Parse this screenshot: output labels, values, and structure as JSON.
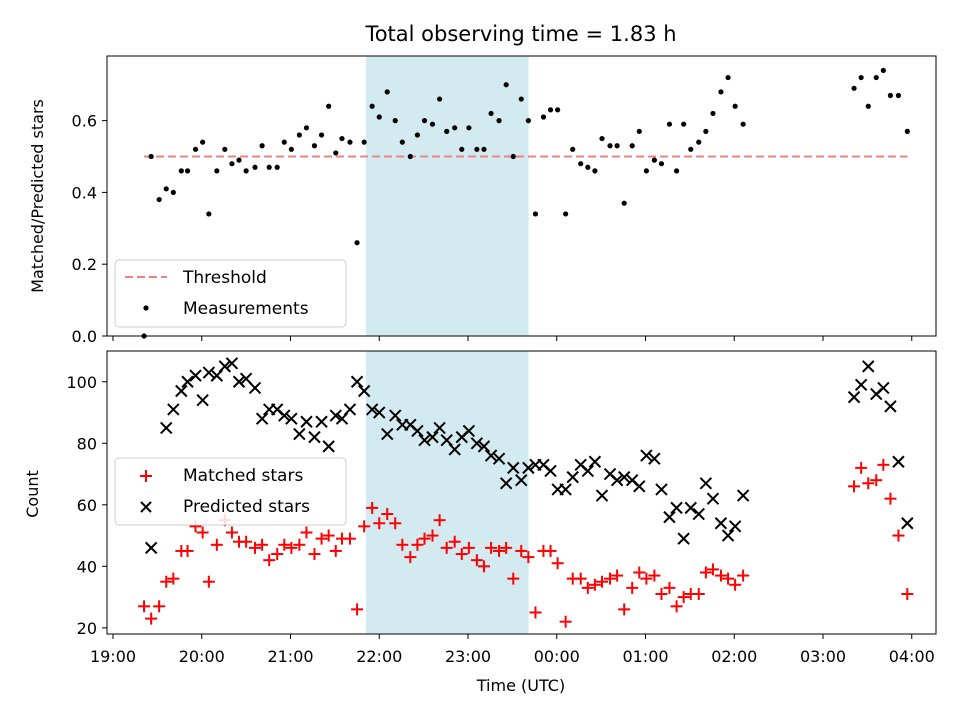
{
  "figure": {
    "title": "Total observing time = 1.83 h",
    "xlabel": "Time (UTC)",
    "x_tick_labels": [
      "19:00",
      "20:00",
      "21:00",
      "22:00",
      "23:00",
      "00:00",
      "01:00",
      "02:00",
      "03:00",
      "04:00"
    ],
    "highlight_band_x": [
      "21:51",
      "23:41"
    ],
    "colors": {
      "highlight": "#d3ebf0",
      "threshold": "#f08080",
      "measurement": "#000000",
      "matched": "#ff0000",
      "predicted": "#000000"
    }
  },
  "chart_data": [
    {
      "type": "scatter",
      "panel": "ratio",
      "ylabel": "Matched/Predicted stars",
      "x_unit": "hours since 19:00 UTC",
      "ylim": [
        0,
        0.78
      ],
      "y_ticks": [
        "0.0",
        "0.2",
        "0.4",
        "0.6"
      ],
      "legend": {
        "placement": "lower-left",
        "entries": [
          "Threshold",
          "Measurements"
        ]
      },
      "threshold": {
        "name": "Threshold",
        "y": 0.5,
        "x_range": [
          0.35,
          8.95
        ]
      },
      "series": [
        {
          "name": "Measurements",
          "points": [
            [
              0.35,
              0.0
            ],
            [
              0.43,
              0.5
            ],
            [
              0.52,
              0.38
            ],
            [
              0.6,
              0.41
            ],
            [
              0.68,
              0.4
            ],
            [
              0.77,
              0.46
            ],
            [
              0.84,
              0.46
            ],
            [
              0.93,
              0.52
            ],
            [
              1.01,
              0.54
            ],
            [
              1.08,
              0.34
            ],
            [
              1.17,
              0.46
            ],
            [
              1.26,
              0.52
            ],
            [
              1.34,
              0.48
            ],
            [
              1.42,
              0.49
            ],
            [
              1.5,
              0.46
            ],
            [
              1.6,
              0.47
            ],
            [
              1.68,
              0.53
            ],
            [
              1.76,
              0.47
            ],
            [
              1.85,
              0.47
            ],
            [
              1.93,
              0.54
            ],
            [
              2.01,
              0.52
            ],
            [
              2.1,
              0.56
            ],
            [
              2.18,
              0.58
            ],
            [
              2.27,
              0.53
            ],
            [
              2.35,
              0.56
            ],
            [
              2.43,
              0.64
            ],
            [
              2.51,
              0.51
            ],
            [
              2.58,
              0.55
            ],
            [
              2.67,
              0.54
            ],
            [
              2.75,
              0.26
            ],
            [
              2.83,
              0.54
            ],
            [
              2.92,
              0.64
            ],
            [
              3.0,
              0.61
            ],
            [
              3.09,
              0.68
            ],
            [
              3.18,
              0.6
            ],
            [
              3.26,
              0.54
            ],
            [
              3.35,
              0.5
            ],
            [
              3.43,
              0.56
            ],
            [
              3.51,
              0.6
            ],
            [
              3.6,
              0.59
            ],
            [
              3.68,
              0.66
            ],
            [
              3.76,
              0.57
            ],
            [
              3.85,
              0.58
            ],
            [
              3.93,
              0.52
            ],
            [
              4.01,
              0.58
            ],
            [
              4.1,
              0.52
            ],
            [
              4.18,
              0.52
            ],
            [
              4.26,
              0.62
            ],
            [
              4.35,
              0.6
            ],
            [
              4.43,
              0.7
            ],
            [
              4.51,
              0.5
            ],
            [
              4.6,
              0.66
            ],
            [
              4.68,
              0.6
            ],
            [
              4.76,
              0.34
            ],
            [
              4.85,
              0.61
            ],
            [
              4.93,
              0.63
            ],
            [
              5.01,
              0.63
            ],
            [
              5.1,
              0.34
            ],
            [
              5.18,
              0.52
            ],
            [
              5.27,
              0.48
            ],
            [
              5.35,
              0.47
            ],
            [
              5.43,
              0.46
            ],
            [
              5.51,
              0.55
            ],
            [
              5.6,
              0.53
            ],
            [
              5.68,
              0.53
            ],
            [
              5.76,
              0.37
            ],
            [
              5.85,
              0.53
            ],
            [
              5.93,
              0.57
            ],
            [
              6.01,
              0.46
            ],
            [
              6.1,
              0.49
            ],
            [
              6.18,
              0.48
            ],
            [
              6.27,
              0.59
            ],
            [
              6.35,
              0.46
            ],
            [
              6.43,
              0.59
            ],
            [
              6.51,
              0.52
            ],
            [
              6.6,
              0.54
            ],
            [
              6.68,
              0.57
            ],
            [
              6.76,
              0.62
            ],
            [
              6.85,
              0.68
            ],
            [
              6.93,
              0.72
            ],
            [
              7.01,
              0.64
            ],
            [
              7.1,
              0.59
            ],
            [
              8.35,
              0.69
            ],
            [
              8.43,
              0.72
            ],
            [
              8.51,
              0.64
            ],
            [
              8.6,
              0.72
            ],
            [
              8.68,
              0.74
            ],
            [
              8.76,
              0.67
            ],
            [
              8.85,
              0.67
            ],
            [
              8.95,
              0.57
            ]
          ]
        }
      ]
    },
    {
      "type": "scatter",
      "panel": "counts",
      "ylabel": "Count",
      "x_unit": "hours since 19:00 UTC",
      "ylim": [
        18,
        110
      ],
      "y_ticks": [
        "20",
        "40",
        "60",
        "80",
        "100"
      ],
      "legend": {
        "placement": "center-left",
        "entries": [
          "Matched stars",
          "Predicted stars"
        ]
      },
      "series": [
        {
          "name": "Matched stars",
          "marker": "plus",
          "points": [
            [
              0.35,
              27
            ],
            [
              0.43,
              23
            ],
            [
              0.52,
              27
            ],
            [
              0.6,
              35
            ],
            [
              0.68,
              36
            ],
            [
              0.77,
              45
            ],
            [
              0.84,
              45
            ],
            [
              0.93,
              53
            ],
            [
              1.01,
              51
            ],
            [
              1.08,
              35
            ],
            [
              1.17,
              47
            ],
            [
              1.26,
              55
            ],
            [
              1.34,
              51
            ],
            [
              1.42,
              48
            ],
            [
              1.5,
              48
            ],
            [
              1.6,
              46
            ],
            [
              1.68,
              47
            ],
            [
              1.76,
              42
            ],
            [
              1.85,
              44
            ],
            [
              1.93,
              47
            ],
            [
              2.01,
              46
            ],
            [
              2.1,
              47
            ],
            [
              2.18,
              51
            ],
            [
              2.27,
              44
            ],
            [
              2.35,
              49
            ],
            [
              2.43,
              50
            ],
            [
              2.51,
              45
            ],
            [
              2.58,
              49
            ],
            [
              2.67,
              49
            ],
            [
              2.75,
              26
            ],
            [
              2.83,
              53
            ],
            [
              2.92,
              59
            ],
            [
              3.0,
              54
            ],
            [
              3.09,
              57
            ],
            [
              3.18,
              54
            ],
            [
              3.26,
              47
            ],
            [
              3.35,
              43
            ],
            [
              3.43,
              47
            ],
            [
              3.51,
              49
            ],
            [
              3.6,
              50
            ],
            [
              3.68,
              55
            ],
            [
              3.76,
              46
            ],
            [
              3.85,
              48
            ],
            [
              3.93,
              44
            ],
            [
              4.01,
              46
            ],
            [
              4.1,
              42
            ],
            [
              4.18,
              40
            ],
            [
              4.26,
              46
            ],
            [
              4.35,
              45
            ],
            [
              4.43,
              46
            ],
            [
              4.51,
              36
            ],
            [
              4.6,
              45
            ],
            [
              4.68,
              43
            ],
            [
              4.76,
              25
            ],
            [
              4.85,
              45
            ],
            [
              4.93,
              45
            ],
            [
              5.01,
              41
            ],
            [
              5.1,
              22
            ],
            [
              5.18,
              36
            ],
            [
              5.27,
              36
            ],
            [
              5.35,
              33
            ],
            [
              5.43,
              34
            ],
            [
              5.51,
              35
            ],
            [
              5.6,
              36
            ],
            [
              5.68,
              37
            ],
            [
              5.76,
              26
            ],
            [
              5.85,
              33
            ],
            [
              5.93,
              38
            ],
            [
              6.01,
              36
            ],
            [
              6.1,
              37
            ],
            [
              6.18,
              31
            ],
            [
              6.27,
              33
            ],
            [
              6.35,
              27
            ],
            [
              6.43,
              30
            ],
            [
              6.51,
              31
            ],
            [
              6.6,
              31
            ],
            [
              6.68,
              38
            ],
            [
              6.76,
              39
            ],
            [
              6.85,
              37
            ],
            [
              6.93,
              36
            ],
            [
              7.01,
              34
            ],
            [
              7.1,
              37
            ],
            [
              8.35,
              66
            ],
            [
              8.43,
              72
            ],
            [
              8.51,
              67
            ],
            [
              8.6,
              68
            ],
            [
              8.68,
              73
            ],
            [
              8.76,
              62
            ],
            [
              8.85,
              50
            ],
            [
              8.95,
              31
            ]
          ]
        },
        {
          "name": "Predicted stars",
          "marker": "x",
          "points": [
            [
              0.43,
              46
            ],
            [
              0.6,
              85
            ],
            [
              0.68,
              91
            ],
            [
              0.77,
              97
            ],
            [
              0.84,
              100
            ],
            [
              0.93,
              102
            ],
            [
              1.01,
              94
            ],
            [
              1.08,
              103
            ],
            [
              1.17,
              102
            ],
            [
              1.26,
              105
            ],
            [
              1.34,
              106
            ],
            [
              1.42,
              100
            ],
            [
              1.5,
              101
            ],
            [
              1.6,
              98
            ],
            [
              1.68,
              88
            ],
            [
              1.76,
              91
            ],
            [
              1.85,
              91
            ],
            [
              1.93,
              89
            ],
            [
              2.01,
              88
            ],
            [
              2.1,
              83
            ],
            [
              2.18,
              87
            ],
            [
              2.27,
              82
            ],
            [
              2.35,
              87
            ],
            [
              2.43,
              79
            ],
            [
              2.51,
              89
            ],
            [
              2.58,
              88
            ],
            [
              2.67,
              91
            ],
            [
              2.75,
              100
            ],
            [
              2.83,
              97
            ],
            [
              2.92,
              91
            ],
            [
              3.0,
              90
            ],
            [
              3.09,
              83
            ],
            [
              3.18,
              89
            ],
            [
              3.26,
              86
            ],
            [
              3.35,
              86
            ],
            [
              3.43,
              84
            ],
            [
              3.51,
              81
            ],
            [
              3.6,
              82
            ],
            [
              3.68,
              85
            ],
            [
              3.76,
              81
            ],
            [
              3.85,
              78
            ],
            [
              3.93,
              82
            ],
            [
              4.01,
              84
            ],
            [
              4.1,
              80
            ],
            [
              4.18,
              79
            ],
            [
              4.26,
              76
            ],
            [
              4.35,
              75
            ],
            [
              4.43,
              67
            ],
            [
              4.51,
              72
            ],
            [
              4.6,
              68
            ],
            [
              4.68,
              72
            ],
            [
              4.76,
              73
            ],
            [
              4.85,
              73
            ],
            [
              4.93,
              71
            ],
            [
              5.01,
              65
            ],
            [
              5.1,
              65
            ],
            [
              5.18,
              69
            ],
            [
              5.27,
              73
            ],
            [
              5.35,
              71
            ],
            [
              5.43,
              74
            ],
            [
              5.51,
              63
            ],
            [
              5.6,
              70
            ],
            [
              5.68,
              68
            ],
            [
              5.76,
              69
            ],
            [
              5.85,
              68
            ],
            [
              5.93,
              66
            ],
            [
              6.01,
              76
            ],
            [
              6.1,
              75
            ],
            [
              6.18,
              65
            ],
            [
              6.27,
              56
            ],
            [
              6.35,
              59
            ],
            [
              6.43,
              49
            ],
            [
              6.51,
              59
            ],
            [
              6.6,
              57
            ],
            [
              6.68,
              67
            ],
            [
              6.76,
              62
            ],
            [
              6.85,
              54
            ],
            [
              6.93,
              50
            ],
            [
              7.01,
              53
            ],
            [
              7.1,
              63
            ],
            [
              8.35,
              95
            ],
            [
              8.43,
              99
            ],
            [
              8.51,
              105
            ],
            [
              8.6,
              96
            ],
            [
              8.68,
              98
            ],
            [
              8.76,
              92
            ],
            [
              8.85,
              74
            ],
            [
              8.95,
              54
            ]
          ]
        }
      ]
    }
  ]
}
